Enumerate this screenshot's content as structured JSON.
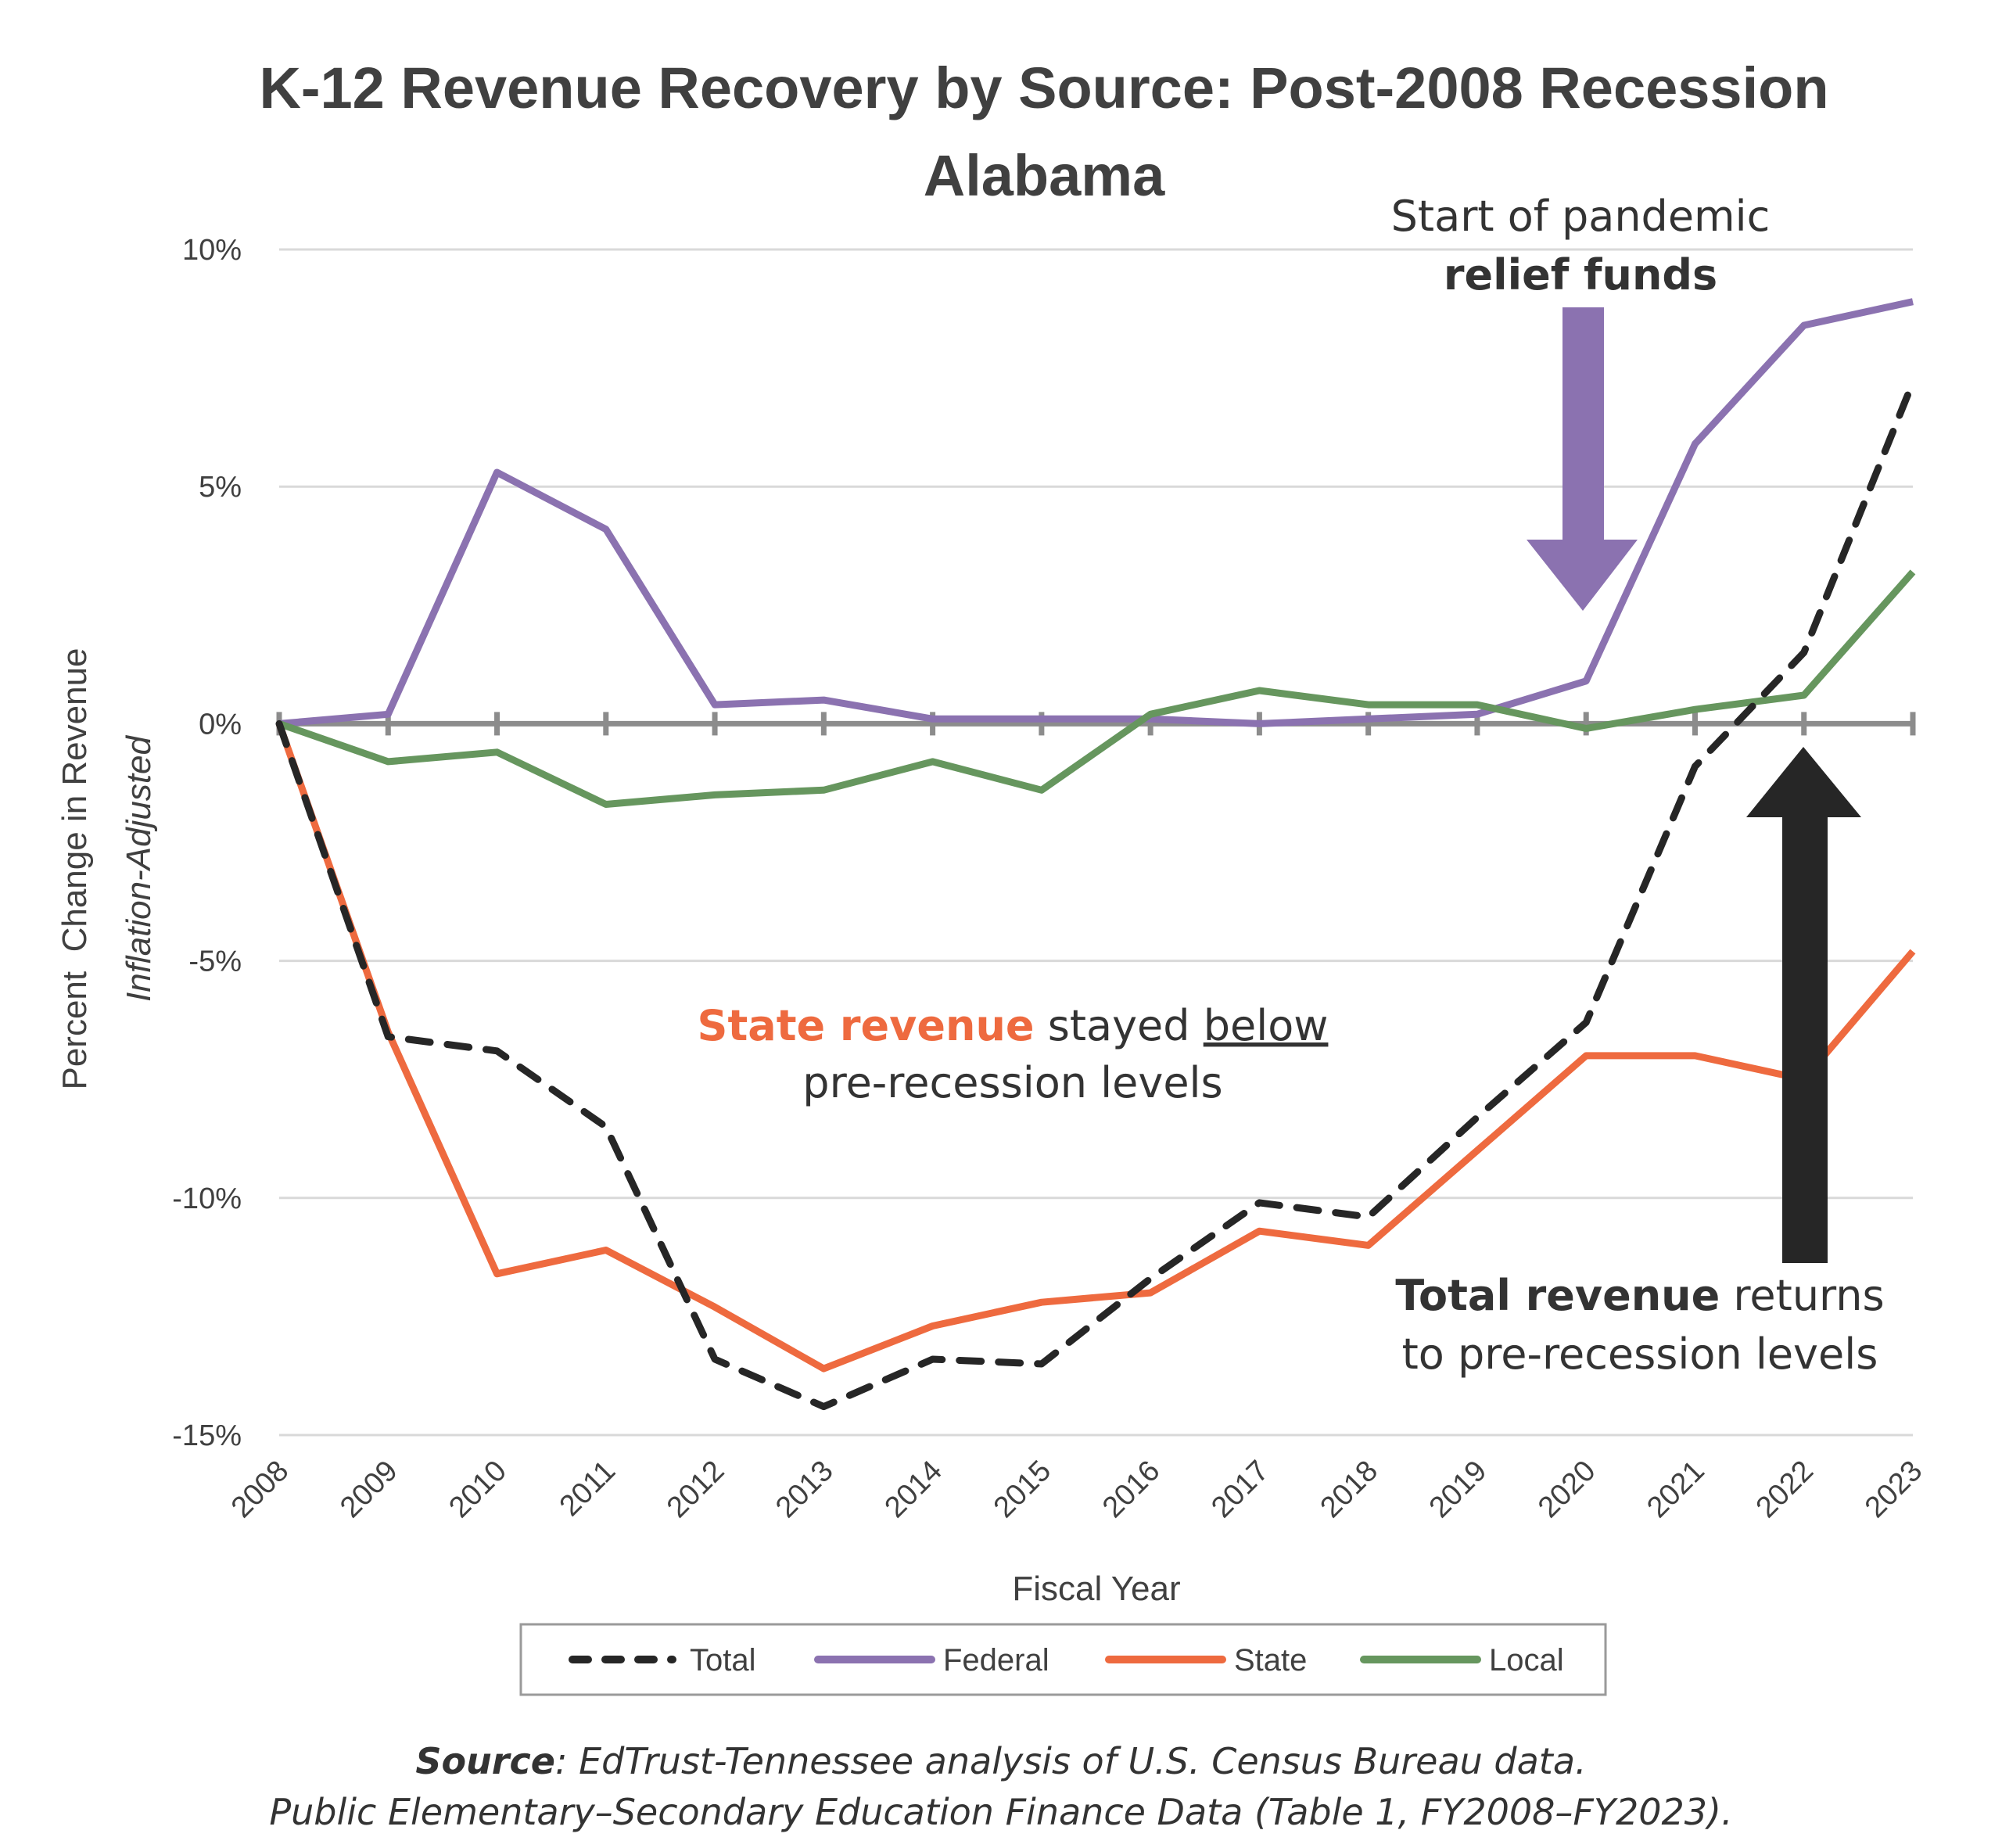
{
  "chart_data": {
    "type": "line",
    "title": "K-12 Revenue Recovery by Source: Post-2008 Recession",
    "subtitle": "Alabama",
    "xlabel": "Fiscal Year",
    "ylabel": "Percent  Change in Revenue",
    "ylabel_sub": "Inflation-Adjusted",
    "ylim": [
      -15,
      10
    ],
    "yticks": [
      10,
      5,
      0,
      -5,
      -10,
      -15
    ],
    "ytick_labels": [
      "10%",
      "5%",
      "0%",
      "-5%",
      "-10%",
      "-15%"
    ],
    "grid": true,
    "legend_position": "bottom",
    "x": [
      "2008",
      "2009",
      "2010",
      "2011",
      "2012",
      "2013",
      "2014",
      "2015",
      "2016",
      "2017",
      "2018",
      "2019",
      "2020",
      "2021",
      "2022",
      "2023"
    ],
    "series": [
      {
        "name": "Total",
        "color": "#262626",
        "style": "dashed",
        "values": [
          0,
          -6.6,
          -6.9,
          -8.5,
          -13.4,
          -14.4,
          -13.4,
          -13.5,
          -11.7,
          -10.1,
          -10.4,
          -8.3,
          -6.3,
          -0.9,
          1.5,
          7.2
        ]
      },
      {
        "name": "Federal",
        "color": "#8B72B0",
        "style": "solid",
        "values": [
          0,
          0.2,
          5.3,
          4.1,
          0.4,
          0.5,
          0.1,
          0.1,
          0.1,
          0.0,
          0.1,
          0.2,
          0.9,
          5.9,
          8.4,
          8.9
        ]
      },
      {
        "name": "State",
        "color": "#EE6A3F",
        "style": "solid",
        "values": [
          0,
          -6.5,
          -11.6,
          -11.1,
          -12.3,
          -13.6,
          -12.7,
          -12.2,
          -12.0,
          -10.7,
          -11.0,
          -9.0,
          -7.0,
          -7.0,
          -7.5,
          -4.8
        ]
      },
      {
        "name": "Local",
        "color": "#66965E",
        "style": "solid",
        "values": [
          0,
          -0.8,
          -0.6,
          -1.7,
          -1.5,
          -1.4,
          -0.8,
          -1.4,
          0.2,
          0.7,
          0.4,
          0.4,
          -0.1,
          0.3,
          0.6,
          3.2
        ]
      }
    ],
    "annotations": [
      {
        "id": "pandemic",
        "line1": "Start of pandemic",
        "line2": "relief funds",
        "color": "#8B72B0",
        "arrow": "down",
        "target_year": "2020"
      },
      {
        "id": "total",
        "bold": "Total revenue",
        "rest": " returns",
        "line2": "to pre-recession levels",
        "color": "#262626",
        "arrow": "up",
        "target_year": "2022"
      },
      {
        "id": "state",
        "bold": "State revenue",
        "middle": " stayed ",
        "underlined": "below",
        "line2": "pre-recession levels",
        "color": "#EE6A3F"
      }
    ]
  },
  "source": {
    "label": "Source",
    "line1_rest": ": EdTrust-Tennessee analysis of U.S. Census Bureau data.",
    "line2": "Public Elementary–Secondary Education Finance Data (Table 1, FY2008–FY2023)."
  }
}
